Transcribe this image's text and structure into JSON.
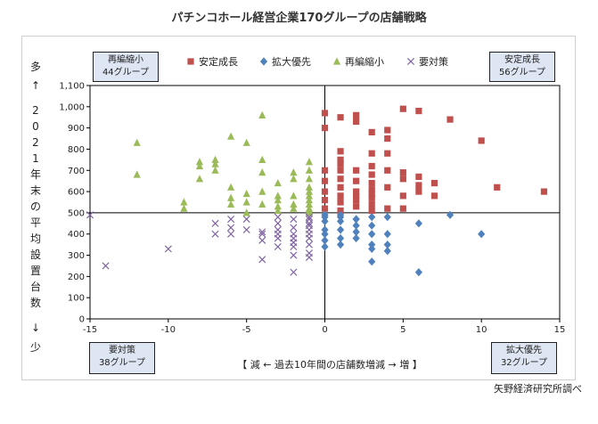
{
  "title": "パチンコホール経営企業170グループの店舗戦略",
  "source": "矢野経済研究所調べ",
  "quadrants": {
    "top_left": {
      "line1": "再編縮小",
      "line2": "44グループ"
    },
    "top_right": {
      "line1": "安定成長",
      "line2": "56グループ"
    },
    "bottom_left": {
      "line1": "要対策",
      "line2": "38グループ"
    },
    "bottom_right": {
      "line1": "拡大優先",
      "line2": "32グループ"
    }
  },
  "ylabel": {
    "top": "多",
    "arrow_up": "↑",
    "text": "2021年末の平均設置台数",
    "arrow_down": "↓",
    "bottom": "少"
  },
  "xlabel": "【 減 ← 過去10年間の店舗数増減 → 増 】",
  "chart_data": {
    "type": "scatter",
    "xlim": [
      -15,
      15
    ],
    "ylim": [
      0,
      1100
    ],
    "xticks": [
      "-15",
      "-10",
      "-5",
      "0",
      "5",
      "10",
      "15"
    ],
    "yticks": [
      "0",
      "100",
      "200",
      "300",
      "400",
      "500",
      "600",
      "700",
      "800",
      "900",
      "1,000",
      "1,100"
    ],
    "reference_lines": {
      "x": 0,
      "y": 500
    },
    "legend_position": "top",
    "series": [
      {
        "name": "安定成長",
        "color": "#c0504d",
        "marker": "square",
        "points": [
          [
            0,
            970
          ],
          [
            0,
            700
          ],
          [
            0,
            650
          ],
          [
            0,
            600
          ],
          [
            0,
            560
          ],
          [
            0,
            520
          ],
          [
            1,
            950
          ],
          [
            1,
            790
          ],
          [
            1,
            750
          ],
          [
            1,
            700
          ],
          [
            1,
            660
          ],
          [
            1,
            620
          ],
          [
            1,
            580
          ],
          [
            1,
            550
          ],
          [
            1,
            510
          ],
          [
            2,
            960
          ],
          [
            2,
            930
          ],
          [
            2,
            700
          ],
          [
            2,
            650
          ],
          [
            2,
            600
          ],
          [
            2,
            560
          ],
          [
            2,
            530
          ],
          [
            3,
            880
          ],
          [
            3,
            780
          ],
          [
            3,
            720
          ],
          [
            3,
            680
          ],
          [
            3,
            640
          ],
          [
            3,
            610
          ],
          [
            3,
            570
          ],
          [
            3,
            540
          ],
          [
            3,
            510
          ],
          [
            4,
            890
          ],
          [
            4,
            780
          ],
          [
            4,
            700
          ],
          [
            4,
            620
          ],
          [
            4,
            520
          ],
          [
            5,
            990
          ],
          [
            5,
            690
          ],
          [
            5,
            660
          ],
          [
            5,
            520
          ],
          [
            6,
            980
          ],
          [
            6,
            670
          ],
          [
            6,
            630
          ],
          [
            7,
            640
          ],
          [
            7,
            580
          ],
          [
            8,
            940
          ],
          [
            10,
            840
          ],
          [
            11,
            620
          ],
          [
            14,
            600
          ],
          [
            0,
            900
          ],
          [
            1,
            730
          ],
          [
            2,
            580
          ],
          [
            3,
            590
          ],
          [
            4,
            850
          ],
          [
            5,
            580
          ],
          [
            6,
            600
          ]
        ]
      },
      {
        "name": "拡大優先",
        "color": "#4f81bd",
        "marker": "diamond",
        "points": [
          [
            0,
            490
          ],
          [
            0,
            460
          ],
          [
            0,
            420
          ],
          [
            0,
            400
          ],
          [
            0,
            370
          ],
          [
            0,
            340
          ],
          [
            1,
            480
          ],
          [
            1,
            460
          ],
          [
            1,
            420
          ],
          [
            1,
            380
          ],
          [
            1,
            350
          ],
          [
            2,
            470
          ],
          [
            2,
            440
          ],
          [
            2,
            410
          ],
          [
            2,
            380
          ],
          [
            3,
            480
          ],
          [
            3,
            440
          ],
          [
            3,
            400
          ],
          [
            3,
            350
          ],
          [
            3,
            330
          ],
          [
            3,
            270
          ],
          [
            4,
            480
          ],
          [
            4,
            400
          ],
          [
            4,
            320
          ],
          [
            6,
            450
          ],
          [
            6,
            220
          ],
          [
            8,
            490
          ],
          [
            10,
            400
          ],
          [
            0,
            480
          ],
          [
            1,
            490
          ],
          [
            2,
            470
          ],
          [
            4,
            350
          ]
        ]
      },
      {
        "name": "再編縮小",
        "color": "#9bbb59",
        "marker": "triangle",
        "points": [
          [
            -12,
            830
          ],
          [
            -12,
            680
          ],
          [
            -9,
            550
          ],
          [
            -9,
            520
          ],
          [
            -8,
            740
          ],
          [
            -8,
            720
          ],
          [
            -8,
            660
          ],
          [
            -7,
            750
          ],
          [
            -7,
            730
          ],
          [
            -7,
            700
          ],
          [
            -6,
            860
          ],
          [
            -6,
            620
          ],
          [
            -6,
            570
          ],
          [
            -5,
            830
          ],
          [
            -5,
            590
          ],
          [
            -5,
            550
          ],
          [
            -5,
            500
          ],
          [
            -4,
            960
          ],
          [
            -4,
            750
          ],
          [
            -4,
            690
          ],
          [
            -4,
            600
          ],
          [
            -3,
            640
          ],
          [
            -3,
            580
          ],
          [
            -3,
            560
          ],
          [
            -3,
            530
          ],
          [
            -2,
            690
          ],
          [
            -2,
            660
          ],
          [
            -2,
            580
          ],
          [
            -2,
            540
          ],
          [
            -1,
            740
          ],
          [
            -1,
            700
          ],
          [
            -1,
            660
          ],
          [
            -1,
            620
          ],
          [
            -1,
            600
          ],
          [
            -1,
            580
          ],
          [
            -1,
            560
          ],
          [
            -1,
            540
          ],
          [
            -1,
            520
          ],
          [
            -1,
            510
          ],
          [
            -1,
            500
          ],
          [
            -2,
            520
          ],
          [
            -3,
            510
          ],
          [
            -6,
            540
          ],
          [
            -4,
            540
          ]
        ]
      },
      {
        "name": "要対策",
        "color": "#8064a2",
        "marker": "x",
        "points": [
          [
            -15,
            490
          ],
          [
            -14,
            250
          ],
          [
            -10,
            330
          ],
          [
            -7,
            450
          ],
          [
            -7,
            400
          ],
          [
            -6,
            470
          ],
          [
            -6,
            400
          ],
          [
            -4,
            400
          ],
          [
            -4,
            370
          ],
          [
            -4,
            280
          ],
          [
            -3,
            450
          ],
          [
            -3,
            420
          ],
          [
            -3,
            400
          ],
          [
            -3,
            380
          ],
          [
            -3,
            340
          ],
          [
            -2,
            470
          ],
          [
            -2,
            430
          ],
          [
            -2,
            400
          ],
          [
            -2,
            340
          ],
          [
            -2,
            300
          ],
          [
            -2,
            220
          ],
          [
            -1,
            480
          ],
          [
            -1,
            450
          ],
          [
            -1,
            420
          ],
          [
            -1,
            400
          ],
          [
            -1,
            380
          ],
          [
            -1,
            350
          ],
          [
            -1,
            310
          ],
          [
            -1,
            290
          ],
          [
            -5,
            470
          ],
          [
            -4,
            410
          ],
          [
            -2,
            360
          ],
          [
            -1,
            470
          ],
          [
            -3,
            480
          ],
          [
            -5,
            420
          ],
          [
            -6,
            430
          ],
          [
            -2,
            380
          ],
          [
            -1,
            440
          ]
        ]
      }
    ]
  }
}
